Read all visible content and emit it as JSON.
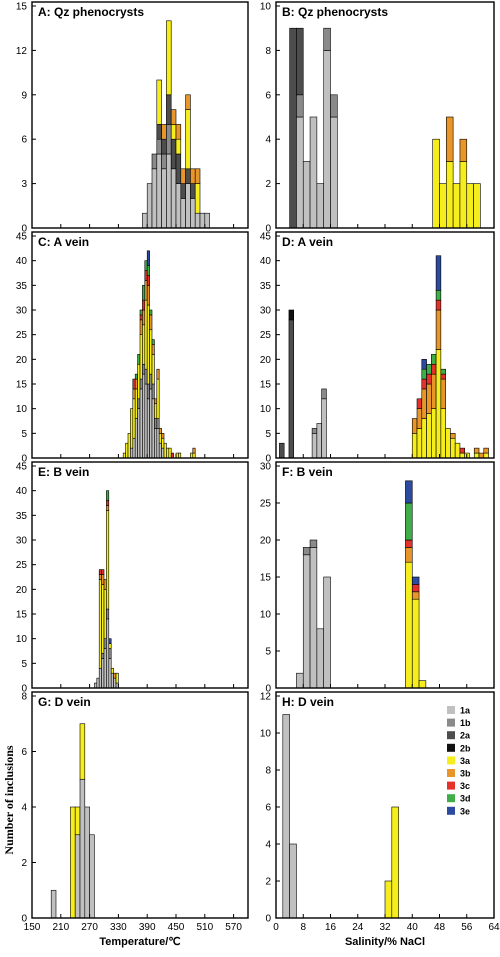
{
  "colors": {
    "1a": "#c0c0c0",
    "1b": "#8a8a8a",
    "2a": "#4d4d4d",
    "2b": "#111111",
    "3a": "#f5ee1c",
    "3b": "#e8962a",
    "3c": "#e4322b",
    "3d": "#3fae49",
    "3e": "#2c4a9f"
  },
  "legend": [
    "1a",
    "1b",
    "2a",
    "2b",
    "3a",
    "3b",
    "3c",
    "3d",
    "3e"
  ],
  "y_axis_title": "Number of inclusions",
  "chart_data": [
    {
      "type": "bar",
      "stacked": true,
      "title": "A: Qz phenocrysts",
      "xlabel": "Temperature/℃",
      "xlim": [
        150,
        600
      ],
      "xticks": [
        150,
        210,
        270,
        330,
        390,
        450,
        510,
        570
      ],
      "bin_width": 10,
      "ylim": [
        0,
        15
      ],
      "yticks": [
        0,
        3,
        6,
        9,
        12,
        15
      ],
      "bars": [
        {
          "x": 380,
          "stack": {
            "1a": 1
          }
        },
        {
          "x": 390,
          "stack": {
            "1a": 3
          }
        },
        {
          "x": 400,
          "stack": {
            "1a": 4,
            "1b": 1
          }
        },
        {
          "x": 410,
          "stack": {
            "1a": 5,
            "1b": 1,
            "2a": 1,
            "3a": 3
          }
        },
        {
          "x": 420,
          "stack": {
            "1a": 4,
            "1b": 1,
            "2a": 1,
            "3b": 1
          }
        },
        {
          "x": 430,
          "stack": {
            "1a": 5,
            "1b": 2,
            "2a": 2,
            "3a": 5
          }
        },
        {
          "x": 440,
          "stack": {
            "1a": 4,
            "2a": 2,
            "3b": 1,
            "3a": 1
          }
        },
        {
          "x": 450,
          "stack": {
            "1a": 3,
            "2a": 2,
            "3b": 1,
            "3a": 1
          }
        },
        {
          "x": 460,
          "stack": {
            "1a": 2,
            "2a": 1,
            "3b": 1
          }
        },
        {
          "x": 470,
          "stack": {
            "1a": 3,
            "2a": 1,
            "3a": 4,
            "3b": 1
          }
        },
        {
          "x": 480,
          "stack": {
            "1a": 2,
            "2a": 1,
            "3b": 1
          }
        },
        {
          "x": 490,
          "stack": {
            "1a": 1,
            "3a": 2,
            "3b": 1
          }
        },
        {
          "x": 500,
          "stack": {
            "1a": 1
          }
        },
        {
          "x": 510,
          "stack": {
            "1a": 1
          }
        }
      ]
    },
    {
      "type": "bar",
      "stacked": true,
      "title": "B: Qz phenocrysts",
      "xlabel": "Salinity/% NaCl",
      "xlim": [
        0,
        64
      ],
      "xticks": [
        0,
        8,
        16,
        24,
        32,
        40,
        48,
        56,
        64
      ],
      "bin_width": 2,
      "ylim": [
        0,
        10
      ],
      "yticks": [
        0,
        2,
        4,
        6,
        8,
        10
      ],
      "bars": [
        {
          "x": 4,
          "stack": {
            "2a": 9
          }
        },
        {
          "x": 6,
          "stack": {
            "1a": 5,
            "1b": 1,
            "2a": 3
          }
        },
        {
          "x": 8,
          "stack": {
            "1a": 3
          }
        },
        {
          "x": 10,
          "stack": {
            "1a": 5
          }
        },
        {
          "x": 12,
          "stack": {
            "1a": 2
          }
        },
        {
          "x": 14,
          "stack": {
            "1a": 8,
            "1b": 1
          }
        },
        {
          "x": 16,
          "stack": {
            "1a": 5,
            "1b": 1
          }
        },
        {
          "x": 46,
          "stack": {
            "3a": 4
          }
        },
        {
          "x": 48,
          "stack": {
            "3a": 2
          }
        },
        {
          "x": 50,
          "stack": {
            "3a": 3,
            "3b": 2
          }
        },
        {
          "x": 52,
          "stack": {
            "3a": 2
          }
        },
        {
          "x": 54,
          "stack": {
            "3a": 3,
            "3b": 1
          }
        },
        {
          "x": 56,
          "stack": {
            "3a": 2
          }
        },
        {
          "x": 58,
          "stack": {
            "3a": 2
          }
        }
      ]
    },
    {
      "type": "bar",
      "stacked": true,
      "title": "C: A vein",
      "xlabel": "Temperature/℃",
      "xlim": [
        150,
        600
      ],
      "xticks": [
        150,
        210,
        270,
        330,
        390,
        450,
        510,
        570
      ],
      "bin_width": 5,
      "ylim": [
        0,
        45
      ],
      "yticks": [
        0,
        5,
        10,
        15,
        20,
        25,
        30,
        35,
        40,
        45
      ],
      "bars": [
        {
          "x": 340,
          "stack": {
            "3a": 1
          }
        },
        {
          "x": 345,
          "stack": {
            "3a": 3
          }
        },
        {
          "x": 350,
          "stack": {
            "3a": 5
          }
        },
        {
          "x": 355,
          "stack": {
            "1a": 2,
            "3a": 8
          }
        },
        {
          "x": 360,
          "stack": {
            "1a": 4,
            "3a": 8,
            "3b": 2,
            "3c": 2
          }
        },
        {
          "x": 365,
          "stack": {
            "1a": 8,
            "3a": 6,
            "3b": 2,
            "3d": 1
          }
        },
        {
          "x": 370,
          "stack": {
            "1a": 10,
            "1b": 2,
            "3a": 7,
            "3d": 2
          }
        },
        {
          "x": 375,
          "stack": {
            "1a": 14,
            "1b": 2,
            "3a": 9,
            "3b": 3,
            "3c": 1,
            "3d": 1
          }
        },
        {
          "x": 380,
          "stack": {
            "1a": 17,
            "1b": 2,
            "3a": 8,
            "3b": 3,
            "3c": 2,
            "3d": 3
          }
        },
        {
          "x": 385,
          "stack": {
            "1a": 15,
            "1b": 3,
            "3a": 14,
            "3b": 4,
            "3c": 2,
            "3d": 2
          }
        },
        {
          "x": 390,
          "stack": {
            "1a": 12,
            "1b": 3,
            "3a": 16,
            "3b": 4,
            "3c": 2,
            "3d": 2,
            "3e": 3
          }
        },
        {
          "x": 395,
          "stack": {
            "1a": 14,
            "1b": 3,
            "3a": 9,
            "3b": 3,
            "3d": 1
          }
        },
        {
          "x": 400,
          "stack": {
            "1a": 12,
            "1b": 3,
            "3a": 6,
            "3b": 2,
            "3d": 1
          }
        },
        {
          "x": 405,
          "stack": {
            "1a": 6,
            "1b": 2,
            "3a": 3,
            "3b": 1
          }
        },
        {
          "x": 410,
          "stack": {
            "1a": 6,
            "1b": 2,
            "3a": 8,
            "3b": 2
          }
        },
        {
          "x": 415,
          "stack": {
            "1a": 3,
            "3a": 2,
            "3b": 1
          }
        },
        {
          "x": 420,
          "stack": {
            "1a": 2,
            "3a": 2,
            "3b": 1
          }
        },
        {
          "x": 425,
          "stack": {
            "3a": 3
          }
        },
        {
          "x": 430,
          "stack": {
            "3a": 2
          }
        },
        {
          "x": 435,
          "stack": {
            "3a": 2
          }
        },
        {
          "x": 440,
          "stack": {
            "3c": 1
          }
        },
        {
          "x": 450,
          "stack": {
            "3a": 1
          }
        },
        {
          "x": 455,
          "stack": {
            "3a": 1
          }
        },
        {
          "x": 480,
          "stack": {
            "3a": 1
          }
        },
        {
          "x": 485,
          "stack": {
            "3a": 1,
            "3b": 1
          }
        }
      ]
    },
    {
      "type": "bar",
      "stacked": true,
      "title": "D: A vein",
      "xlabel": "Salinity/% NaCl",
      "xlim": [
        0,
        64
      ],
      "xticks": [
        0,
        8,
        16,
        24,
        32,
        40,
        48,
        56,
        64
      ],
      "bin_width": 1.4,
      "ylim": [
        0,
        45
      ],
      "yticks": [
        0,
        5,
        10,
        15,
        20,
        25,
        30,
        35,
        40,
        45
      ],
      "bars": [
        {
          "x": 1,
          "stack": {
            "2a": 3
          }
        },
        {
          "x": 3.8,
          "stack": {
            "2a": 28,
            "2b": 2
          }
        },
        {
          "x": 10.6,
          "stack": {
            "1a": 5,
            "1b": 1
          }
        },
        {
          "x": 12,
          "stack": {
            "1a": 7
          }
        },
        {
          "x": 13.4,
          "stack": {
            "1a": 12,
            "1b": 2
          }
        },
        {
          "x": 40,
          "stack": {
            "3a": 5,
            "3b": 3
          }
        },
        {
          "x": 41.4,
          "stack": {
            "3a": 6,
            "3b": 4,
            "3c": 2
          }
        },
        {
          "x": 42.8,
          "stack": {
            "3a": 8,
            "3b": 6,
            "3c": 2,
            "3d": 2,
            "3e": 2
          }
        },
        {
          "x": 44.2,
          "stack": {
            "3a": 9,
            "3b": 6,
            "3c": 2,
            "3d": 2
          }
        },
        {
          "x": 45.6,
          "stack": {
            "3a": 10,
            "3b": 7,
            "3c": 2,
            "3d": 2
          }
        },
        {
          "x": 47,
          "stack": {
            "3a": 22,
            "3b": 8,
            "3c": 2,
            "3d": 2,
            "3e": 7
          }
        },
        {
          "x": 48.4,
          "stack": {
            "3a": 10,
            "3b": 6,
            "3c": 1,
            "3d": 1
          }
        },
        {
          "x": 49.8,
          "stack": {
            "3a": 6
          }
        },
        {
          "x": 51.2,
          "stack": {
            "3a": 4,
            "3b": 1
          }
        },
        {
          "x": 52.6,
          "stack": {
            "3a": 3
          }
        },
        {
          "x": 54,
          "stack": {
            "3a": 1,
            "3c": 1
          }
        },
        {
          "x": 55.4,
          "stack": {
            "3a": 1
          }
        },
        {
          "x": 58.2,
          "stack": {
            "3a": 1,
            "3b": 1
          }
        },
        {
          "x": 59.6,
          "stack": {
            "3b": 1
          }
        },
        {
          "x": 61,
          "stack": {
            "3a": 1,
            "3b": 1
          }
        }
      ]
    },
    {
      "type": "bar",
      "stacked": true,
      "title": "E: B vein",
      "xlabel": "Temperature/℃",
      "xlim": [
        150,
        600
      ],
      "xticks": [
        150,
        210,
        270,
        330,
        390,
        450,
        510,
        570
      ],
      "bin_width": 5,
      "ylim": [
        0,
        45
      ],
      "yticks": [
        0,
        5,
        10,
        15,
        20,
        25,
        30,
        35,
        40,
        45
      ],
      "bars": [
        {
          "x": 280,
          "stack": {
            "1a": 1
          }
        },
        {
          "x": 285,
          "stack": {
            "1a": 2
          }
        },
        {
          "x": 290,
          "stack": {
            "1a": 4,
            "3a": 18,
            "3b": 1,
            "3c": 1
          }
        },
        {
          "x": 295,
          "stack": {
            "1a": 6,
            "1b": 1,
            "3a": 14,
            "3b": 2,
            "3c": 1
          }
        },
        {
          "x": 300,
          "stack": {
            "1a": 8,
            "1b": 2,
            "3a": 10,
            "3b": 2
          }
        },
        {
          "x": 305,
          "stack": {
            "1a": 14,
            "1b": 2,
            "3a": 20,
            "3b": 1,
            "3c": 1,
            "3d": 2
          }
        },
        {
          "x": 310,
          "stack": {
            "1a": 6,
            "1b": 2,
            "3a": 1,
            "3e": 1
          }
        },
        {
          "x": 315,
          "stack": {
            "1a": 3,
            "3a": 1
          }
        },
        {
          "x": 320,
          "stack": {
            "1a": 2,
            "3b": 1
          }
        },
        {
          "x": 325,
          "stack": {
            "1a": 1,
            "3a": 2
          }
        }
      ]
    },
    {
      "type": "bar",
      "stacked": true,
      "title": "F: B vein",
      "xlabel": "Salinity/% NaCl",
      "xlim": [
        0,
        64
      ],
      "xticks": [
        0,
        8,
        16,
        24,
        32,
        40,
        48,
        56,
        64
      ],
      "bin_width": 2,
      "ylim": [
        0,
        30
      ],
      "yticks": [
        0,
        5,
        10,
        15,
        20,
        25,
        30
      ],
      "bars": [
        {
          "x": 6,
          "stack": {
            "1a": 2
          }
        },
        {
          "x": 8,
          "stack": {
            "1a": 18,
            "1b": 1
          }
        },
        {
          "x": 10,
          "stack": {
            "1a": 19,
            "1b": 1
          }
        },
        {
          "x": 12,
          "stack": {
            "1a": 8
          }
        },
        {
          "x": 14,
          "stack": {
            "1a": 15
          }
        },
        {
          "x": 38,
          "stack": {
            "3a": 17,
            "3b": 2,
            "3c": 1,
            "3d": 5,
            "3e": 3
          }
        },
        {
          "x": 40,
          "stack": {
            "3a": 12,
            "3b": 1,
            "3c": 1,
            "3e": 1
          }
        },
        {
          "x": 42,
          "stack": {
            "3a": 1
          }
        }
      ]
    },
    {
      "type": "bar",
      "stacked": true,
      "title": "G: D vein",
      "xlabel": "Temperature/℃",
      "xlim": [
        150,
        600
      ],
      "xticks": [
        150,
        210,
        270,
        330,
        390,
        450,
        510,
        570
      ],
      "bin_width": 10,
      "ylim": [
        0,
        8
      ],
      "yticks": [
        0,
        2,
        4,
        6,
        8
      ],
      "bars": [
        {
          "x": 190,
          "stack": {
            "1a": 1
          }
        },
        {
          "x": 230,
          "stack": {
            "3a": 4
          }
        },
        {
          "x": 240,
          "stack": {
            "1a": 3,
            "3a": 1
          }
        },
        {
          "x": 250,
          "stack": {
            "1a": 5,
            "3a": 2
          }
        },
        {
          "x": 260,
          "stack": {
            "1a": 4
          }
        },
        {
          "x": 270,
          "stack": {
            "1a": 3
          }
        }
      ]
    },
    {
      "type": "bar",
      "stacked": true,
      "title": "H: D vein",
      "xlabel": "Salinity/% NaCl",
      "xlim": [
        0,
        64
      ],
      "xticks": [
        0,
        8,
        16,
        24,
        32,
        40,
        48,
        56,
        64
      ],
      "bin_width": 2,
      "ylim": [
        0,
        12
      ],
      "yticks": [
        0,
        2,
        4,
        6,
        8,
        10,
        12
      ],
      "bars": [
        {
          "x": 2,
          "stack": {
            "1a": 11
          }
        },
        {
          "x": 4,
          "stack": {
            "1a": 4
          }
        },
        {
          "x": 32,
          "stack": {
            "3a": 2
          }
        },
        {
          "x": 34,
          "stack": {
            "3a": 6
          }
        }
      ]
    }
  ]
}
